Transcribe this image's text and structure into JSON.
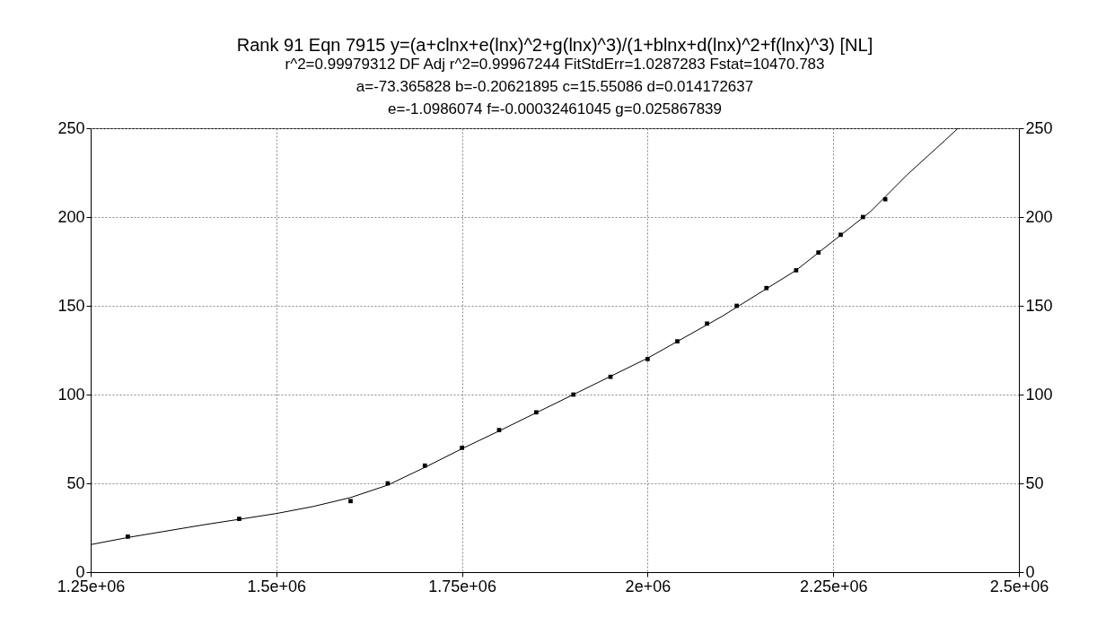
{
  "chart_data": {
    "type": "scatter",
    "title": "Rank 91  Eqn 7915  y=(a+clnx+e(lnx)^2+g(lnx)^3)/(1+blnx+d(lnx)^2+f(lnx)^3) [NL]",
    "subtitle": "r^2=0.99979312  DF Adj r^2=0.99967244  FitStdErr=1.0287283  Fstat=10470.783\na=-73.365828 b=-0.20621895 c=15.55086 d=0.014172637\ne=-1.0986074 f=-0.00032461045 g=0.025867839",
    "x": [
      1300000,
      1450000,
      1600000,
      1650000,
      1700000,
      1750000,
      1800000,
      1850000,
      1900000,
      1950000,
      2000000,
      2040000,
      2080000,
      2120000,
      2160000,
      2200000,
      2230000,
      2260000,
      2290000,
      2320000
    ],
    "series": [
      {
        "color": "#000000",
        "marker": "square",
        "values": [
          20,
          30,
          40,
          50,
          60,
          70,
          80,
          90,
          100,
          110,
          120,
          130,
          140,
          150,
          160,
          170,
          180,
          190,
          200,
          210
        ]
      },
      {
        "type": "line",
        "color": "#000000",
        "marker": "none",
        "line_style": "solid",
        "x": [
          1250000,
          1300000,
          1400000,
          1500000,
          1550000,
          1600000,
          1650000,
          1700000,
          1750000,
          1800000,
          1900000,
          2000000,
          2100000,
          2200000,
          2300000,
          2350000,
          2400000,
          2418000
        ],
        "values": [
          15.5,
          19.5,
          26.5,
          33,
          37,
          42,
          49,
          59,
          69.5,
          79.5,
          100,
          120.5,
          144,
          170,
          203,
          224,
          243,
          250
        ]
      }
    ],
    "xlim": [
      1250000,
      2500000
    ],
    "xticks": [
      {
        "value": 1250000,
        "label": "1.25e+06"
      },
      {
        "value": 1500000,
        "label": "1.5e+06"
      },
      {
        "value": 1750000,
        "label": "1.75e+06"
      },
      {
        "value": 2000000,
        "label": "2e+06"
      },
      {
        "value": 2250000,
        "label": "2.25e+06"
      },
      {
        "value": 2500000,
        "label": "2.5e+06"
      }
    ],
    "ylim": [
      0,
      250
    ],
    "yticks": [
      0,
      50,
      100,
      150,
      200,
      250
    ],
    "y2lim": [
      0,
      250
    ],
    "y2ticks": [
      0,
      50,
      100,
      150,
      200,
      250
    ],
    "grid": true
  }
}
